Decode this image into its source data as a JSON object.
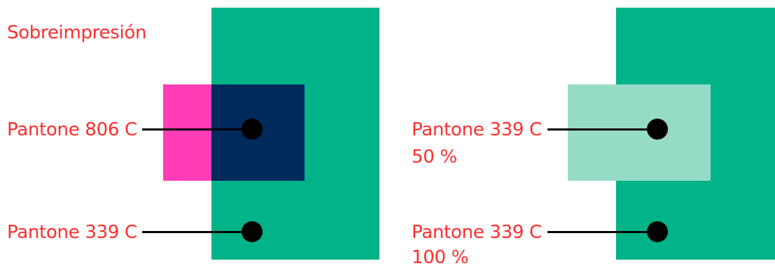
{
  "title": "Sobreimpresión",
  "left_panel": {
    "top_label": "Pantone 806 C",
    "bottom_label": "Pantone 339 C"
  },
  "right_panel": {
    "top_label_line1": "Pantone 339 C",
    "top_label_line2": "50 %",
    "bottom_label_line1": "Pantone 339 C",
    "bottom_label_line2": "100 %"
  },
  "colors": {
    "pantone_339c": "#00b388",
    "pantone_339c_50": "#96dbc6",
    "pantone_806c": "#ff3db6",
    "overprint": "#002a5c",
    "label_text": "#ff2d2d",
    "leader": "#000000"
  }
}
